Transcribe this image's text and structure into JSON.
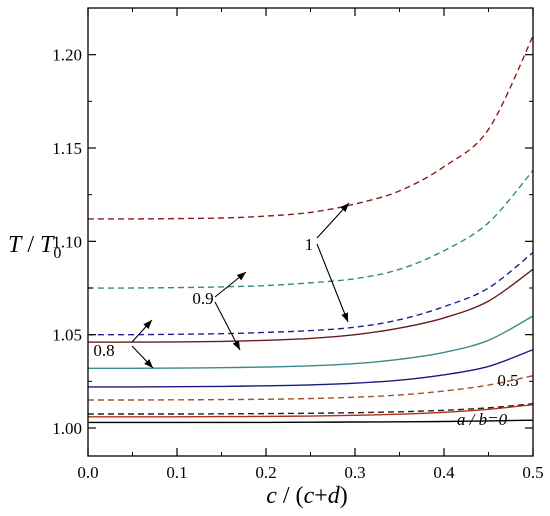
{
  "chart_data": {
    "type": "line",
    "xlabel": {
      "part1": "c",
      "part2": " / (",
      "part3": "c",
      "part4": "+",
      "part5": "d",
      "part6": ")"
    },
    "ylabel": {
      "part1": "T",
      "part2": " / ",
      "part3": "T",
      "part4": "0"
    },
    "xlim": [
      0.0,
      0.5
    ],
    "ylim": [
      0.985,
      1.225
    ],
    "xticks": [
      0.0,
      0.1,
      0.2,
      0.3,
      0.4,
      0.5
    ],
    "xtick_labels": [
      "0.0",
      "0.1",
      "0.2",
      "0.3",
      "0.4",
      "0.5"
    ],
    "yticks": [
      1.0,
      1.05,
      1.1,
      1.15,
      1.2
    ],
    "ytick_labels": [
      "1.00",
      "1.05",
      "1.10",
      "1.15",
      "1.20"
    ],
    "grid": false,
    "legend": "none",
    "series": [
      {
        "style": "dashed",
        "color": "#8b1a1a",
        "x": [
          0.0,
          0.05,
          0.1,
          0.15,
          0.2,
          0.25,
          0.3,
          0.35,
          0.4,
          0.45,
          0.5
        ],
        "values": [
          1.112,
          1.112,
          1.1122,
          1.1125,
          1.1135,
          1.1155,
          1.12,
          1.127,
          1.14,
          1.16,
          1.21
        ]
      },
      {
        "style": "dashed",
        "color": "#2e8b8b",
        "x": [
          0.0,
          0.05,
          0.1,
          0.15,
          0.2,
          0.25,
          0.3,
          0.35,
          0.4,
          0.45,
          0.5
        ],
        "values": [
          1.075,
          1.075,
          1.0752,
          1.0756,
          1.0763,
          1.0778,
          1.08,
          1.085,
          1.095,
          1.11,
          1.138
        ]
      },
      {
        "style": "dashed",
        "color": "#1f1f8f",
        "x": [
          0.0,
          0.05,
          0.1,
          0.15,
          0.2,
          0.25,
          0.3,
          0.35,
          0.4,
          0.45,
          0.5
        ],
        "values": [
          1.05,
          1.05,
          1.0502,
          1.0505,
          1.0512,
          1.0522,
          1.054,
          1.058,
          1.065,
          1.075,
          1.094
        ]
      },
      {
        "style": "solid",
        "color": "#6b1a1a",
        "x": [
          0.0,
          0.05,
          0.1,
          0.15,
          0.2,
          0.25,
          0.3,
          0.35,
          0.4,
          0.45,
          0.5
        ],
        "values": [
          1.046,
          1.046,
          1.0461,
          1.0464,
          1.047,
          1.048,
          1.05,
          1.0535,
          1.059,
          1.068,
          1.085
        ]
      },
      {
        "style": "solid",
        "color": "#3a8a8a",
        "x": [
          0.0,
          0.05,
          0.1,
          0.15,
          0.2,
          0.25,
          0.3,
          0.35,
          0.4,
          0.45,
          0.5
        ],
        "values": [
          1.032,
          1.032,
          1.0321,
          1.0323,
          1.0327,
          1.0333,
          1.0345,
          1.0368,
          1.0405,
          1.047,
          1.06
        ]
      },
      {
        "style": "solid",
        "color": "#1a1a80",
        "x": [
          0.0,
          0.05,
          0.1,
          0.15,
          0.2,
          0.25,
          0.3,
          0.35,
          0.4,
          0.45,
          0.5
        ],
        "values": [
          1.022,
          1.022,
          1.0221,
          1.0223,
          1.0226,
          1.0231,
          1.024,
          1.0256,
          1.0285,
          1.033,
          1.042
        ]
      },
      {
        "style": "dashed",
        "color": "#a0522d",
        "x": [
          0.0,
          0.05,
          0.1,
          0.15,
          0.2,
          0.25,
          0.3,
          0.35,
          0.4,
          0.45,
          0.5
        ],
        "values": [
          1.015,
          1.015,
          1.0151,
          1.0152,
          1.0154,
          1.0158,
          1.0165,
          1.0177,
          1.0198,
          1.023,
          1.028
        ]
      },
      {
        "style": "dashed",
        "color": "#222222",
        "x": [
          0.0,
          0.05,
          0.1,
          0.15,
          0.2,
          0.25,
          0.3,
          0.35,
          0.4,
          0.45,
          0.5
        ],
        "values": [
          1.0075,
          1.0075,
          1.0075,
          1.0076,
          1.0077,
          1.0079,
          1.0082,
          1.0087,
          1.0095,
          1.0108,
          1.013
        ]
      },
      {
        "style": "solid",
        "color": "#b0301a",
        "x": [
          0.0,
          0.05,
          0.1,
          0.15,
          0.2,
          0.25,
          0.3,
          0.35,
          0.4,
          0.45,
          0.5
        ],
        "values": [
          1.006,
          1.006,
          1.006,
          1.0061,
          1.0062,
          1.0064,
          1.0068,
          1.0074,
          1.0084,
          1.01,
          1.0125
        ]
      },
      {
        "style": "solid",
        "color": "#000000",
        "x": [
          0.0,
          0.05,
          0.1,
          0.15,
          0.2,
          0.25,
          0.3,
          0.35,
          0.4,
          0.45,
          0.5
        ],
        "values": [
          1.003,
          1.003,
          1.003,
          1.003,
          1.003,
          1.0031,
          1.0032,
          1.0033,
          1.0035,
          1.0038,
          1.0042
        ]
      }
    ],
    "annotations": [
      {
        "text": "1",
        "italic": false
      },
      {
        "text": "0.9",
        "italic": false
      },
      {
        "text": "0.8",
        "italic": false
      },
      {
        "text": "0.5",
        "italic": false
      },
      {
        "text": "a / b=0",
        "italic": true
      }
    ]
  }
}
